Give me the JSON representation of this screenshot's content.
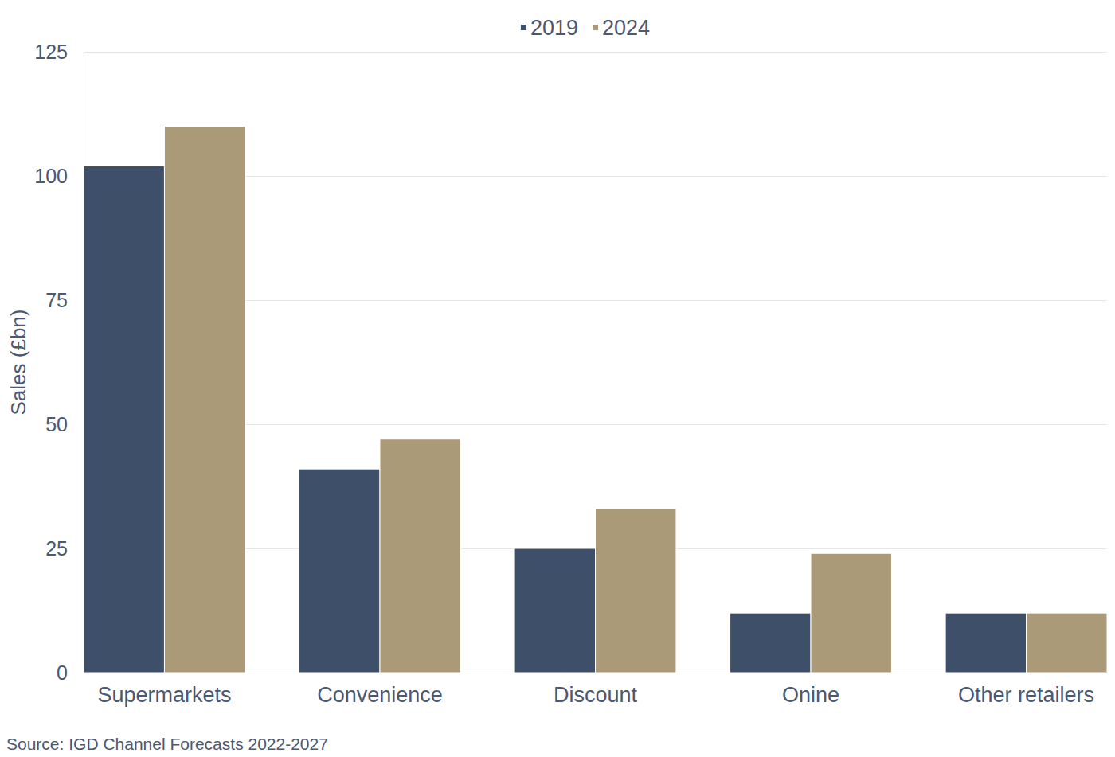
{
  "chart_data": {
    "type": "bar",
    "y_label": "Sales (£bn)",
    "source": "Source: IGD Channel Forecasts 2022-2027",
    "categories": [
      "Supermarkets",
      "Convenience",
      "Discount",
      "Onine",
      "Other retailers"
    ],
    "series": [
      {
        "name": "2019",
        "color": "#3e4f69",
        "values": [
          102,
          41,
          25,
          12,
          12
        ]
      },
      {
        "name": "2024",
        "color": "#ab9a77",
        "values": [
          110,
          47,
          33,
          24,
          12
        ]
      }
    ],
    "ylim": [
      0,
      125
    ],
    "yticks": [
      0,
      25,
      50,
      75,
      100,
      125
    ],
    "grid": true,
    "legend": "top"
  }
}
